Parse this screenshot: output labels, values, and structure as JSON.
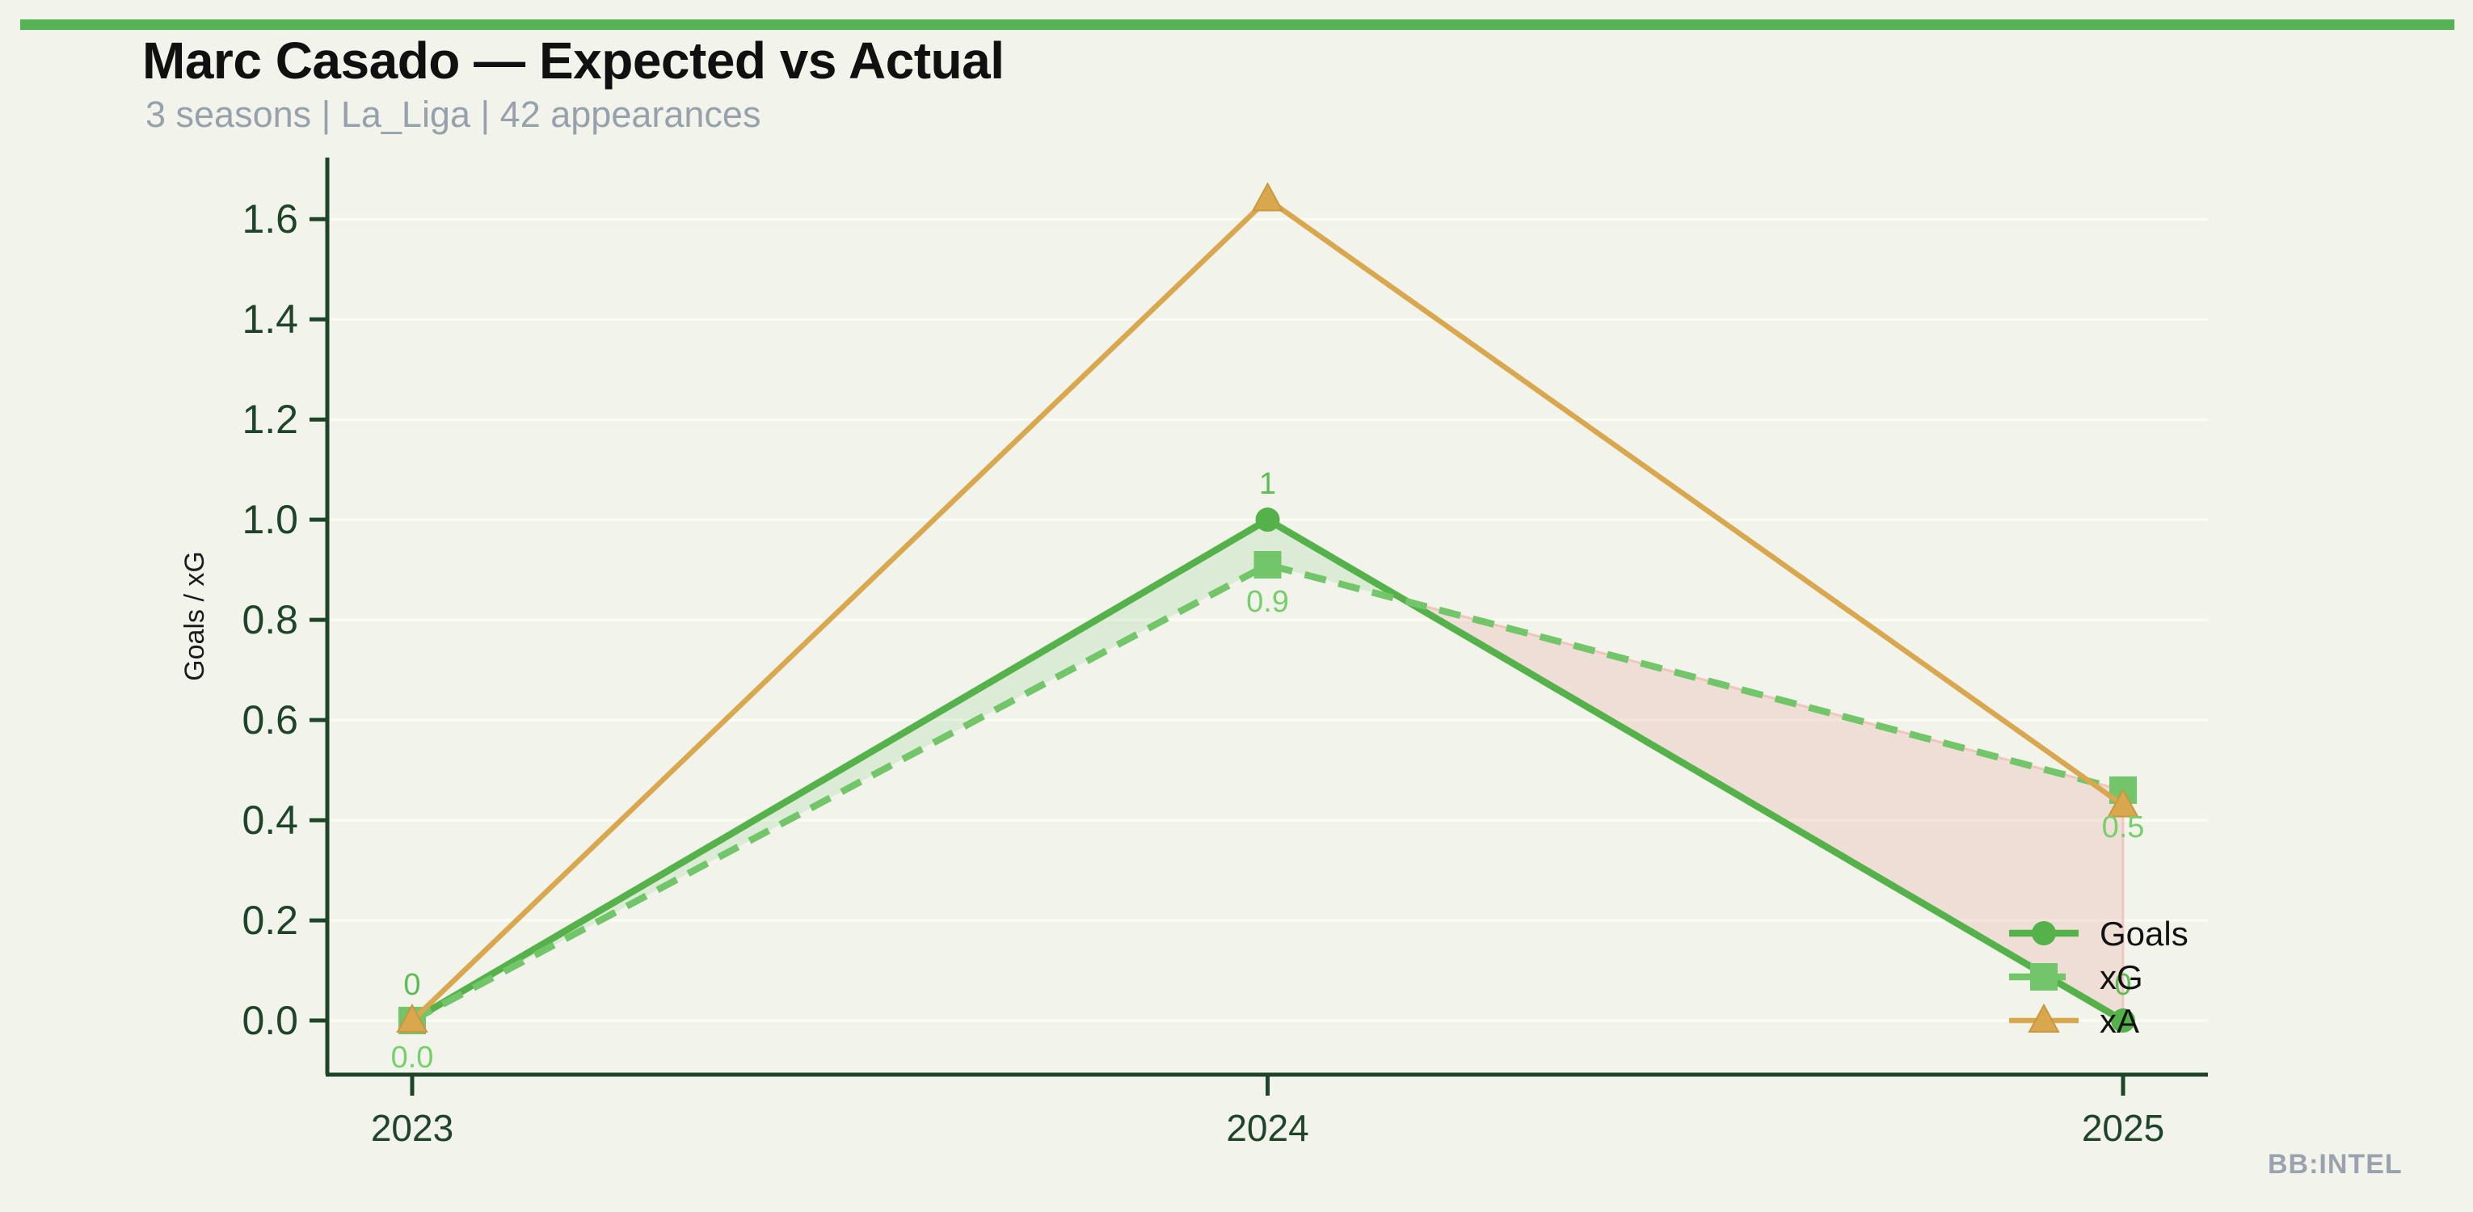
{
  "page": {
    "background": "#f2f4ec",
    "accent_bar_color": "#56b353",
    "watermark": "BB:INTEL",
    "watermark_color": "#9aa3ad"
  },
  "header": {
    "title": "Marc Casado — Expected vs Actual",
    "subtitle": "3 seasons | La_Liga | 42 appearances",
    "title_color": "#101010",
    "subtitle_color": "#97a1ac"
  },
  "chart_data": {
    "type": "line",
    "title": "Marc Casado — Expected vs Actual",
    "subtitle": "3 seasons | La_Liga | 42 appearances",
    "categories": [
      "2023",
      "2024",
      "2025"
    ],
    "xlabel": "",
    "ylabel": "Goals / xG",
    "ylim": [
      -0.108,
      1.723
    ],
    "yticks": [
      0.0,
      0.2,
      0.4,
      0.6,
      0.8,
      1.0,
      1.2,
      1.4,
      1.6
    ],
    "ytick_labels": [
      "0.0",
      "0.2",
      "0.4",
      "0.6",
      "0.8",
      "1.0",
      "1.2",
      "1.4",
      "1.6"
    ],
    "grid": "horizontal-faint",
    "legend_position": "lower-right-inside",
    "axis_color": "#1e4429",
    "tick_label_color": "#1e4429",
    "gridline_color": "#fbfcf4",
    "ylabel_color": "#1b1b1b",
    "legend_text_color": "#121212",
    "series": [
      {
        "name": "Goals",
        "values": [
          0,
          1,
          0
        ],
        "labels": [
          "0",
          "1",
          "0"
        ],
        "label_side": "above",
        "label_color": "#5dbd55",
        "color": "#55b24b",
        "style": "solid",
        "marker": "circle"
      },
      {
        "name": "xG",
        "values": [
          0.0,
          0.91,
          0.46
        ],
        "labels": [
          "0.0",
          "0.9",
          "0.5"
        ],
        "label_side": "below",
        "label_color": "#77cf6c",
        "color": "#72c569",
        "style": "dashed",
        "marker": "square"
      },
      {
        "name": "xA",
        "values": [
          0.0,
          1.64,
          0.43
        ],
        "labels": null,
        "color": "#d9a84e",
        "marker_edge": "#c9973d",
        "style": "solid",
        "marker": "triangle"
      }
    ],
    "fills": [
      {
        "pair": [
          "Goals",
          "xG"
        ],
        "region": "first_above",
        "color": "rgba(106,191,91,0.16)",
        "edge": "none"
      },
      {
        "pair": [
          "Goals",
          "xG"
        ],
        "region": "second_above",
        "color": "rgba(222,110,100,0.17)",
        "edge": "rgba(240,170,160,0.55)"
      }
    ]
  }
}
